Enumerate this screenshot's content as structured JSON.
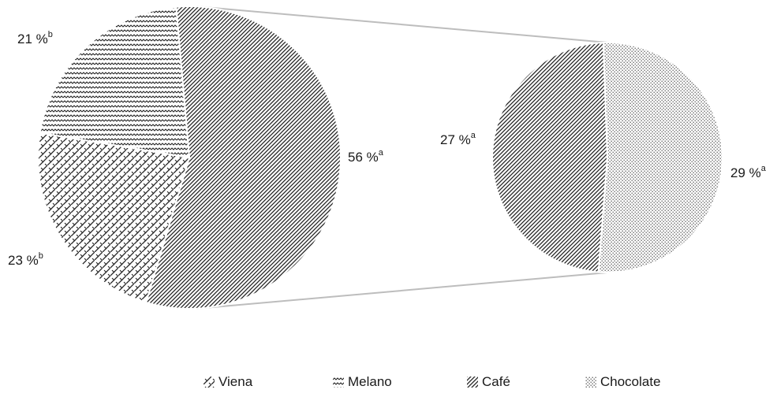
{
  "chart_data": {
    "type": "pie",
    "subtype": "pie-of-pie",
    "title": "",
    "categories": [
      "Viena",
      "Melano",
      "Café",
      "Chocolate"
    ],
    "main_pie": {
      "slices": [
        {
          "name": "Café",
          "value": 56,
          "label": "56 %",
          "sup": "a",
          "pattern": "diagonal"
        },
        {
          "name": "Viena",
          "value": 23,
          "label": "23 %",
          "sup": "b",
          "pattern": "brick"
        },
        {
          "name": "Melano",
          "value": 21,
          "label": "21 %",
          "sup": "b",
          "pattern": "zigzag"
        }
      ]
    },
    "secondary_pie": {
      "slices": [
        {
          "name": "Café",
          "value": 27,
          "label": "27 %",
          "sup": "a",
          "pattern": "diagonal"
        },
        {
          "name": "Chocolate",
          "value": 29,
          "label": "29 %",
          "sup": "a",
          "pattern": "dots"
        }
      ]
    },
    "legend": {
      "position": "bottom",
      "items": [
        {
          "label": "Viena",
          "pattern": "brick"
        },
        {
          "label": "Melano",
          "pattern": "zigzag"
        },
        {
          "label": "Café",
          "pattern": "diagonal"
        },
        {
          "label": "Chocolate",
          "pattern": "dots"
        }
      ]
    },
    "colors": {
      "ink": "#1a1a1a",
      "connector": "#bdbdbd",
      "background": "#ffffff"
    }
  }
}
